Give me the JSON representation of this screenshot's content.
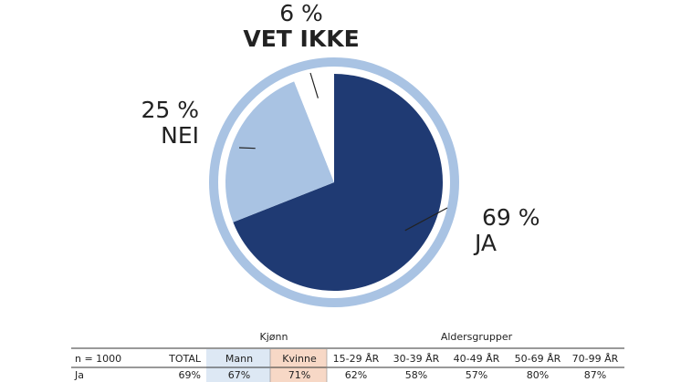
{
  "chart_data": {
    "type": "pie",
    "categories": [
      "JA",
      "NEI",
      "VET IKKE"
    ],
    "values": [
      69,
      25,
      6
    ],
    "value_labels": [
      "69 %",
      "25 %",
      "6 %"
    ],
    "colors": [
      "#1f3a73",
      "#a9c3e3",
      "#ffffff"
    ],
    "ring_color": "#a9c3e3"
  },
  "table": {
    "group_headers": [
      "Kjønn",
      "Aldersgrupper"
    ],
    "header": [
      "n = 1000",
      "TOTAL",
      "Mann",
      "Kvinne",
      "15-29 ÅR",
      "30-39 ÅR",
      "40-49 ÅR",
      "50-69 ÅR",
      "70-99 ÅR"
    ],
    "rows": [
      [
        "Ja",
        "69%",
        "67%",
        "71%",
        "62%",
        "58%",
        "57%",
        "80%",
        "87%"
      ]
    ]
  }
}
